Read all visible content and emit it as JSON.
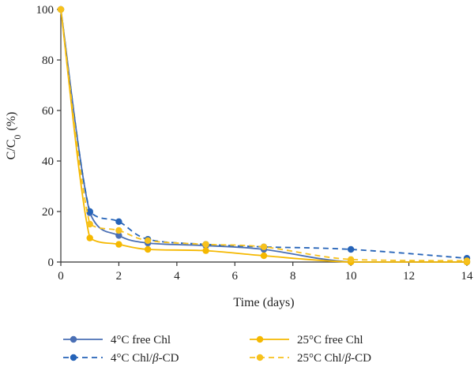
{
  "chart_data": {
    "type": "line",
    "title": "",
    "xlabel": "Time (days)",
    "ylabel": {
      "main": "C/C",
      "sub": "0",
      "suffix": " (%)"
    },
    "xlim": [
      0,
      14
    ],
    "ylim": [
      0,
      100
    ],
    "xticks": [
      "0",
      "2",
      "4",
      "6",
      "8",
      "10",
      "12",
      "14"
    ],
    "yticks": [
      "0",
      "20",
      "40",
      "60",
      "80",
      "100"
    ],
    "grid": false,
    "legend_position": "bottom",
    "series": [
      {
        "name": "4°C free Chl",
        "label_parts": [
          "4°C free Chl"
        ],
        "color": "#4a6fb5",
        "dash": "solid",
        "x": [
          0,
          1,
          2,
          3,
          5,
          7,
          10,
          14
        ],
        "y": [
          100,
          19.5,
          10.5,
          7.5,
          6.5,
          5,
          0,
          0
        ]
      },
      {
        "name": "4°C Chl/β-CD",
        "label_parts": [
          "4°C Chl/",
          "β",
          "-CD"
        ],
        "color": "#2563b8",
        "dash": "dashed",
        "x": [
          0,
          1,
          2,
          3,
          5,
          7,
          10,
          14
        ],
        "y": [
          100,
          20,
          16,
          9,
          7,
          6,
          5,
          1.5
        ]
      },
      {
        "name": "25°C free Chl",
        "label_parts": [
          "25°C free Chl"
        ],
        "color": "#f5b800",
        "dash": "solid",
        "x": [
          0,
          1,
          2,
          3,
          5,
          7,
          10,
          14
        ],
        "y": [
          100,
          9.5,
          7,
          5,
          4.5,
          2.5,
          0,
          0
        ]
      },
      {
        "name": "25°C Chl/β-CD",
        "label_parts": [
          "25°C Chl/",
          "β",
          "-CD"
        ],
        "color": "#f7c11c",
        "dash": "dashed",
        "x": [
          0,
          1,
          2,
          3,
          5,
          7,
          10,
          14
        ],
        "y": [
          100,
          15,
          12.5,
          8.5,
          7,
          6,
          1,
          0.5
        ]
      }
    ]
  }
}
